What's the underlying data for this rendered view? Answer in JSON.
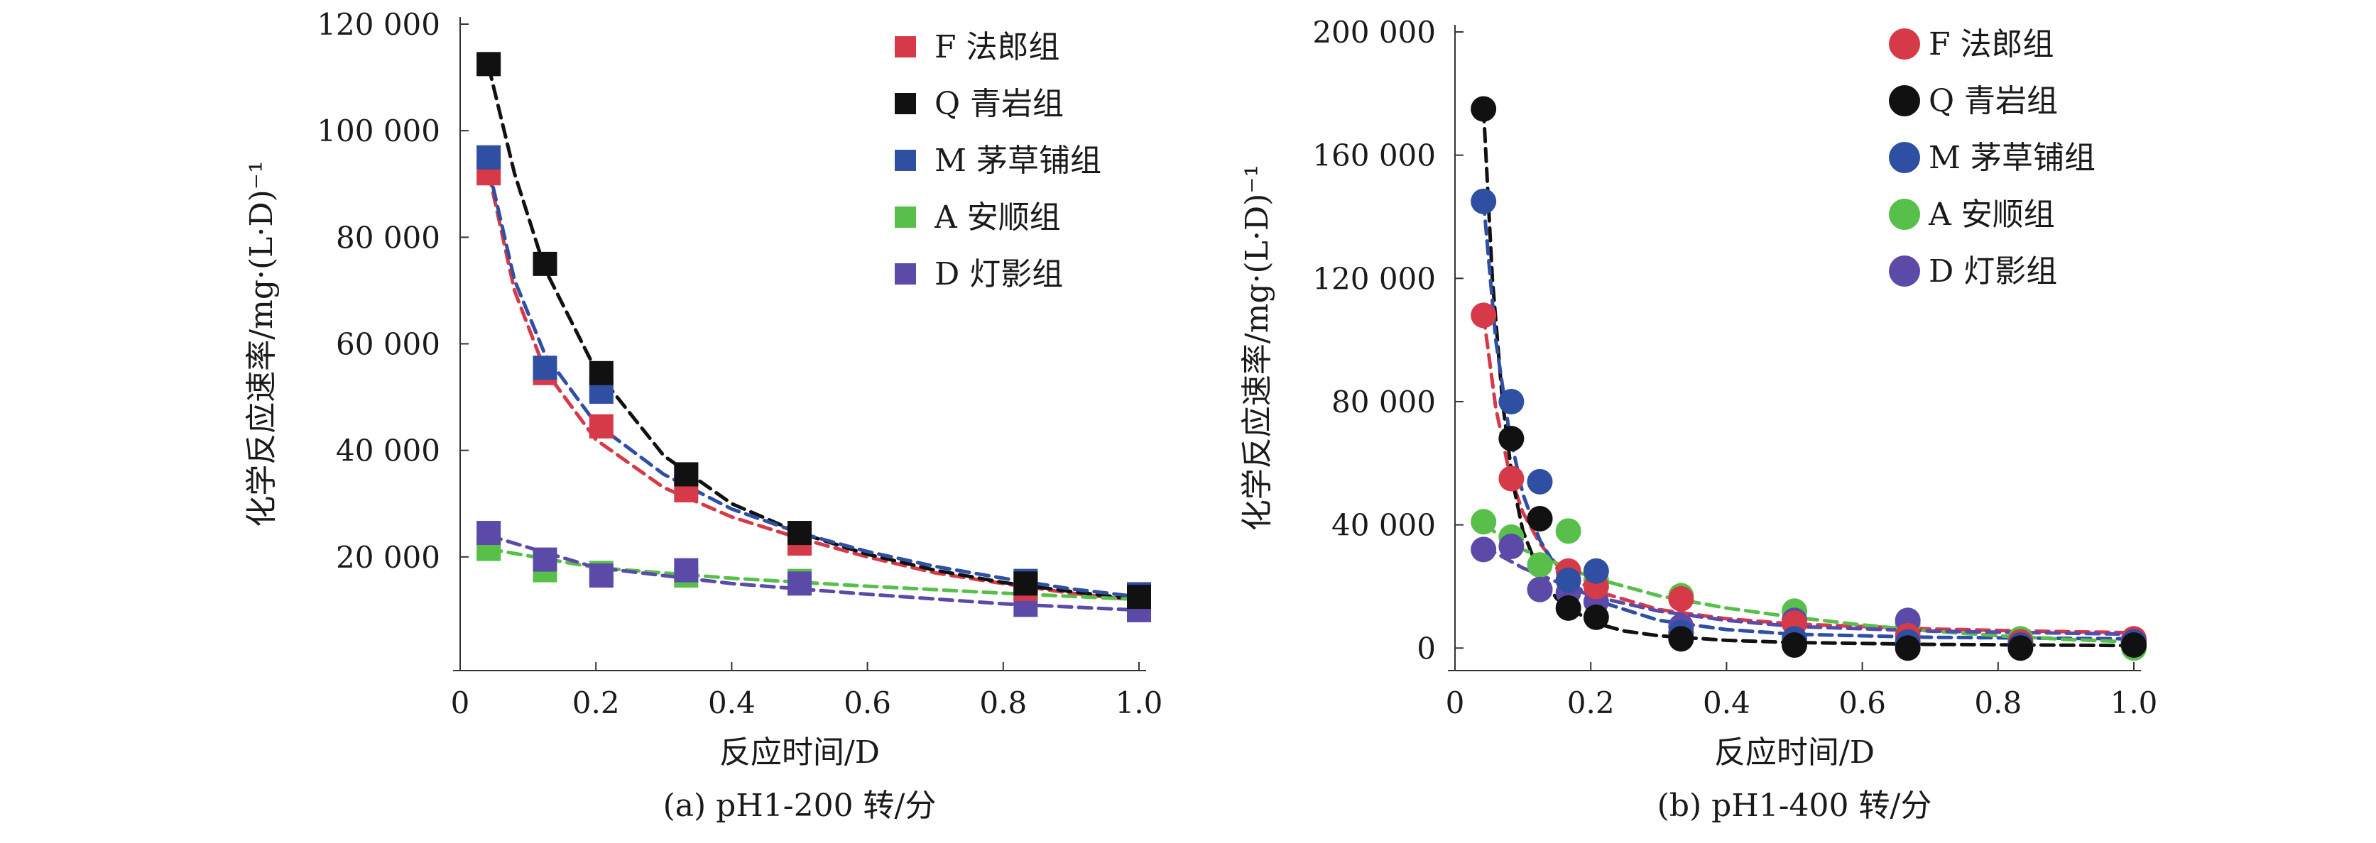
{
  "colors": {
    "F": "#d63a48",
    "Q": "#111111",
    "M": "#2f4fa3",
    "A": "#58c04a",
    "D": "#5b4aa8",
    "axis": "#333333",
    "text": "#1a1a1a"
  },
  "chart_data": [
    {
      "id": "a",
      "type": "scatter",
      "marker": "square",
      "title": "",
      "caption": "(a) pH1-200 转/分",
      "xlabel": "反应时间/D",
      "ylabel": "化学反应速率/mg·(L·D)⁻¹",
      "xlim": [
        0,
        1.0
      ],
      "ylim": [
        0,
        120000
      ],
      "xticks": [
        0,
        0.2,
        0.4,
        0.6,
        0.8,
        1.0
      ],
      "xtick_labels": [
        "0",
        "0.2",
        "0.4",
        "0.6",
        "0.8",
        "1.0"
      ],
      "yticks": [
        20000,
        40000,
        60000,
        80000,
        100000,
        120000
      ],
      "ytick_labels": [
        "20 000",
        "40 000",
        "60 000",
        "80 000",
        "100 000",
        "120 000"
      ],
      "grid": false,
      "legend_position": "top-right",
      "series": [
        {
          "key": "F",
          "name": "F 法郎组",
          "x": [
            0.042,
            0.125,
            0.208,
            0.333,
            0.5,
            0.833,
            1.0
          ],
          "y": [
            92000,
            54500,
            44500,
            32500,
            22500,
            14000,
            12500
          ],
          "fit_x": [
            0.042,
            0.08,
            0.125,
            0.2,
            0.3,
            0.4,
            0.5,
            0.6,
            0.7,
            0.8,
            0.9,
            1.0
          ],
          "fit_y": [
            92000,
            70000,
            55000,
            42000,
            33000,
            27500,
            23500,
            20000,
            17000,
            15000,
            13200,
            11800
          ]
        },
        {
          "key": "Q",
          "name": "Q 青岩组",
          "x": [
            0.042,
            0.125,
            0.208,
            0.333,
            0.5,
            0.833,
            1.0
          ],
          "y": [
            112500,
            75000,
            54500,
            35500,
            24500,
            15000,
            12500
          ],
          "fit_x": [
            0.042,
            0.08,
            0.125,
            0.2,
            0.3,
            0.4,
            0.5,
            0.6,
            0.7,
            0.8,
            0.9,
            1.0
          ],
          "fit_y": [
            112000,
            92000,
            74000,
            55000,
            39000,
            30000,
            24500,
            20500,
            17500,
            15200,
            13500,
            12000
          ]
        },
        {
          "key": "M",
          "name": "M 茅草铺组",
          "x": [
            0.042,
            0.125,
            0.208,
            0.333,
            0.5,
            0.833,
            1.0
          ],
          "y": [
            95000,
            55500,
            51000,
            35500,
            24500,
            15500,
            13000
          ],
          "fit_x": [
            0.042,
            0.08,
            0.125,
            0.2,
            0.3,
            0.4,
            0.5,
            0.6,
            0.7,
            0.8,
            0.9,
            1.0
          ],
          "fit_y": [
            93000,
            72000,
            58000,
            45000,
            35500,
            29000,
            24500,
            21000,
            18200,
            16000,
            14000,
            12500
          ]
        },
        {
          "key": "A",
          "name": "A 安顺组",
          "x": [
            0.042,
            0.125,
            0.208,
            0.333,
            0.5,
            0.833,
            1.0
          ],
          "y": [
            21500,
            17500,
            17000,
            16500,
            15500,
            13000,
            11500
          ],
          "fit_x": [
            0.042,
            0.2,
            0.4,
            0.6,
            0.8,
            1.0
          ],
          "fit_y": [
            21500,
            18000,
            16000,
            14500,
            13200,
            12000
          ]
        },
        {
          "key": "D",
          "name": "D 灯影组",
          "x": [
            0.042,
            0.125,
            0.208,
            0.333,
            0.5,
            0.833,
            1.0
          ],
          "y": [
            24500,
            19500,
            16500,
            17500,
            15000,
            11000,
            10000
          ],
          "fit_x": [
            0.042,
            0.2,
            0.4,
            0.6,
            0.8,
            1.0
          ],
          "fit_y": [
            24000,
            18000,
            15000,
            13000,
            11200,
            10000
          ]
        }
      ]
    },
    {
      "id": "b",
      "type": "scatter",
      "marker": "circle",
      "title": "",
      "caption": "(b) pH1-400 转/分",
      "xlabel": "反应时间/D",
      "ylabel": "化学反应速率/mg·(L·D)⁻¹",
      "xlim": [
        0,
        1.0
      ],
      "ylim": [
        -5000,
        200000
      ],
      "xticks": [
        0,
        0.2,
        0.4,
        0.6,
        0.8,
        1.0
      ],
      "xtick_labels": [
        "0",
        "0.2",
        "0.4",
        "0.6",
        "0.8",
        "1.0"
      ],
      "yticks": [
        0,
        40000,
        80000,
        120000,
        160000,
        200000
      ],
      "ytick_labels": [
        "0",
        "40 000",
        "80 000",
        "120 000",
        "160 000",
        "200 000"
      ],
      "grid": false,
      "legend_position": "top-right",
      "series": [
        {
          "key": "F",
          "name": "F 法郎组",
          "x": [
            0.042,
            0.083,
            0.125,
            0.167,
            0.208,
            0.333,
            0.5,
            0.667,
            0.833,
            1.0
          ],
          "y": [
            108000,
            55000,
            42000,
            25000,
            20000,
            16000,
            8000,
            4000,
            2000,
            3000
          ],
          "fit_x": [
            0.042,
            0.06,
            0.08,
            0.1,
            0.125,
            0.15,
            0.2,
            0.3,
            0.4,
            0.5,
            0.7,
            0.85,
            1.0
          ],
          "fit_y": [
            108000,
            78000,
            57000,
            44000,
            34000,
            27000,
            19000,
            12500,
            9500,
            7800,
            6200,
            5500,
            5000
          ]
        },
        {
          "key": "Q",
          "name": "Q 青岩组",
          "x": [
            0.042,
            0.083,
            0.125,
            0.167,
            0.208,
            0.333,
            0.5,
            0.667,
            0.833,
            1.0
          ],
          "y": [
            175000,
            68000,
            42000,
            13000,
            10000,
            3000,
            1000,
            0,
            0,
            1000
          ],
          "fit_x": [
            0.042,
            0.055,
            0.07,
            0.085,
            0.1,
            0.125,
            0.15,
            0.2,
            0.25,
            0.3,
            0.4,
            0.5,
            0.7,
            1.0
          ],
          "fit_y": [
            175000,
            120000,
            80000,
            54000,
            38000,
            24000,
            16000,
            8500,
            5500,
            4000,
            2500,
            1800,
            1200,
            800
          ]
        },
        {
          "key": "M",
          "name": "M 茅草铺组",
          "x": [
            0.042,
            0.083,
            0.125,
            0.167,
            0.208,
            0.333,
            0.5,
            0.667,
            0.833,
            1.0
          ],
          "y": [
            145000,
            80000,
            54000,
            22000,
            25000,
            5000,
            3000,
            2000,
            1000,
            2000
          ],
          "fit_x": [
            0.042,
            0.06,
            0.08,
            0.1,
            0.125,
            0.15,
            0.2,
            0.3,
            0.4,
            0.5,
            0.7,
            1.0
          ],
          "fit_y": [
            145000,
            100000,
            70000,
            50000,
            35000,
            26000,
            16000,
            9000,
            6000,
            4500,
            3500,
            3000
          ]
        },
        {
          "key": "A",
          "name": "A 安顺组",
          "x": [
            0.042,
            0.083,
            0.125,
            0.167,
            0.208,
            0.333,
            0.5,
            0.667,
            0.833,
            1.0
          ],
          "y": [
            41000,
            36000,
            27000,
            38000,
            22000,
            17000,
            12000,
            8000,
            3000,
            0
          ],
          "fit_x": [
            0.042,
            0.1,
            0.2,
            0.3,
            0.4,
            0.5,
            0.6,
            0.7,
            0.8,
            0.9,
            1.0
          ],
          "fit_y": [
            40000,
            32000,
            23000,
            17000,
            13000,
            10000,
            7500,
            5500,
            4000,
            2800,
            2000
          ]
        },
        {
          "key": "D",
          "name": "D 灯影组",
          "x": [
            0.042,
            0.083,
            0.125,
            0.167,
            0.208,
            0.333,
            0.5,
            0.667,
            0.833,
            1.0
          ],
          "y": [
            32000,
            33000,
            19000,
            18000,
            15000,
            7000,
            9000,
            9000,
            2000,
            1000
          ],
          "fit_x": [
            0.042,
            0.1,
            0.2,
            0.3,
            0.4,
            0.5,
            0.7,
            1.0
          ],
          "fit_y": [
            33000,
            26000,
            17000,
            12000,
            9000,
            7000,
            5500,
            4500
          ]
        }
      ]
    }
  ]
}
